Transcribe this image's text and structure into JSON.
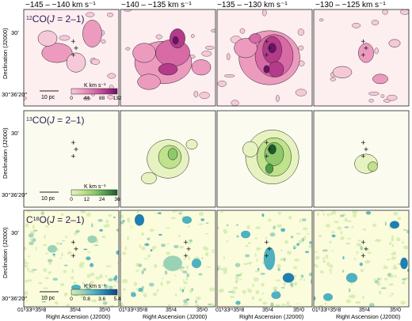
{
  "columns": [
    "−145 – −140 km s⁻¹",
    "−140 – −135 km s⁻¹",
    "−135 – −130 km s⁻¹",
    "−130 – −125 km s⁻¹"
  ],
  "rows": [
    {
      "molecule": "12CO(J = 2–1)",
      "iso": "12",
      "species": "CO(",
      "jlabel": "J",
      "jrest": " = 2–1)",
      "colorbar_title": "K km s⁻¹",
      "colorbar_ticks": [
        "0",
        "44",
        "88",
        "132"
      ],
      "bg": "#fdeef0",
      "colors": [
        "#f6c9d8",
        "#ec9bbf",
        "#d86aa6",
        "#b43a8a",
        "#6b1166"
      ]
    },
    {
      "molecule": "13CO(J = 2–1)",
      "iso": "13",
      "species": "CO(",
      "jlabel": "J",
      "jrest": " = 2–1)",
      "colorbar_title": "K km s⁻¹",
      "colorbar_ticks": [
        "0",
        "12",
        "24",
        "36"
      ],
      "bg": "#fbfcef",
      "colors": [
        "#e6f3c0",
        "#bfe28c",
        "#8fc86a",
        "#4f9a4a",
        "#1b5a2a"
      ]
    },
    {
      "molecule": "C18O(J = 2–1)",
      "iso": "18",
      "species": "C",
      "post": "O(",
      "jlabel": "J",
      "jrest": " = 2–1)",
      "colorbar_title": "K km s⁻¹",
      "colorbar_ticks": [
        "0",
        "0.8",
        "3.6",
        "5.4"
      ],
      "bg": "#fbfcdc",
      "colors": [
        "#d6ecb0",
        "#9ad2b6",
        "#4fb0c0",
        "#1e7fb0",
        "#0e3f86"
      ]
    }
  ],
  "y_axis": {
    "label": "Declination (J2000)",
    "tick_top": "30′",
    "tick_bottom": "30°36′20″"
  },
  "x_axis": {
    "label": "Right Ascension (J2000)",
    "tick_first": "01ʰ33ᵐ35ˢ8",
    "tick_mid": "35ˢ4",
    "tick_last": "35ˢ0"
  },
  "scalebar_label": "10 pc"
}
